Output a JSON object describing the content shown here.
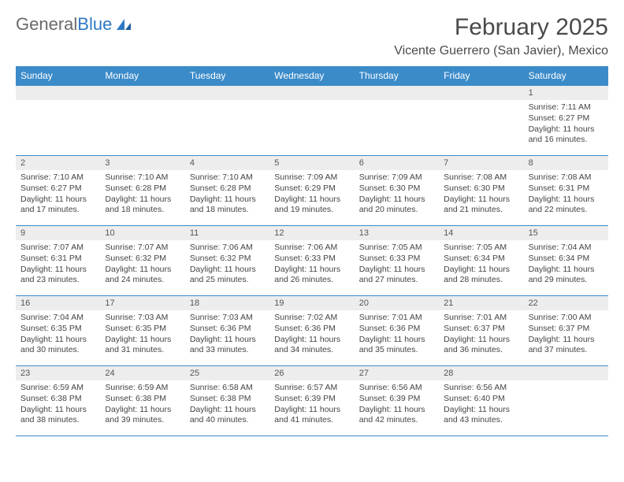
{
  "logo": {
    "text1": "General",
    "text2": "Blue"
  },
  "title": "February 2025",
  "location": "Vicente Guerrero (San Javier), Mexico",
  "colors": {
    "header_bg": "#3b8bc9",
    "header_text": "#ffffff",
    "daynum_bg": "#ededed",
    "border": "#3b8bc9",
    "body_text": "#444444"
  },
  "typography": {
    "title_fontsize": 30,
    "location_fontsize": 16,
    "header_fontsize": 12,
    "cell_fontsize": 10.5
  },
  "day_names": [
    "Sunday",
    "Monday",
    "Tuesday",
    "Wednesday",
    "Thursday",
    "Friday",
    "Saturday"
  ],
  "weeks": [
    [
      null,
      null,
      null,
      null,
      null,
      null,
      {
        "n": "1",
        "sunrise": "7:11 AM",
        "sunset": "6:27 PM",
        "daylight": "11 hours and 16 minutes."
      }
    ],
    [
      {
        "n": "2",
        "sunrise": "7:10 AM",
        "sunset": "6:27 PM",
        "daylight": "11 hours and 17 minutes."
      },
      {
        "n": "3",
        "sunrise": "7:10 AM",
        "sunset": "6:28 PM",
        "daylight": "11 hours and 18 minutes."
      },
      {
        "n": "4",
        "sunrise": "7:10 AM",
        "sunset": "6:28 PM",
        "daylight": "11 hours and 18 minutes."
      },
      {
        "n": "5",
        "sunrise": "7:09 AM",
        "sunset": "6:29 PM",
        "daylight": "11 hours and 19 minutes."
      },
      {
        "n": "6",
        "sunrise": "7:09 AM",
        "sunset": "6:30 PM",
        "daylight": "11 hours and 20 minutes."
      },
      {
        "n": "7",
        "sunrise": "7:08 AM",
        "sunset": "6:30 PM",
        "daylight": "11 hours and 21 minutes."
      },
      {
        "n": "8",
        "sunrise": "7:08 AM",
        "sunset": "6:31 PM",
        "daylight": "11 hours and 22 minutes."
      }
    ],
    [
      {
        "n": "9",
        "sunrise": "7:07 AM",
        "sunset": "6:31 PM",
        "daylight": "11 hours and 23 minutes."
      },
      {
        "n": "10",
        "sunrise": "7:07 AM",
        "sunset": "6:32 PM",
        "daylight": "11 hours and 24 minutes."
      },
      {
        "n": "11",
        "sunrise": "7:06 AM",
        "sunset": "6:32 PM",
        "daylight": "11 hours and 25 minutes."
      },
      {
        "n": "12",
        "sunrise": "7:06 AM",
        "sunset": "6:33 PM",
        "daylight": "11 hours and 26 minutes."
      },
      {
        "n": "13",
        "sunrise": "7:05 AM",
        "sunset": "6:33 PM",
        "daylight": "11 hours and 27 minutes."
      },
      {
        "n": "14",
        "sunrise": "7:05 AM",
        "sunset": "6:34 PM",
        "daylight": "11 hours and 28 minutes."
      },
      {
        "n": "15",
        "sunrise": "7:04 AM",
        "sunset": "6:34 PM",
        "daylight": "11 hours and 29 minutes."
      }
    ],
    [
      {
        "n": "16",
        "sunrise": "7:04 AM",
        "sunset": "6:35 PM",
        "daylight": "11 hours and 30 minutes."
      },
      {
        "n": "17",
        "sunrise": "7:03 AM",
        "sunset": "6:35 PM",
        "daylight": "11 hours and 31 minutes."
      },
      {
        "n": "18",
        "sunrise": "7:03 AM",
        "sunset": "6:36 PM",
        "daylight": "11 hours and 33 minutes."
      },
      {
        "n": "19",
        "sunrise": "7:02 AM",
        "sunset": "6:36 PM",
        "daylight": "11 hours and 34 minutes."
      },
      {
        "n": "20",
        "sunrise": "7:01 AM",
        "sunset": "6:36 PM",
        "daylight": "11 hours and 35 minutes."
      },
      {
        "n": "21",
        "sunrise": "7:01 AM",
        "sunset": "6:37 PM",
        "daylight": "11 hours and 36 minutes."
      },
      {
        "n": "22",
        "sunrise": "7:00 AM",
        "sunset": "6:37 PM",
        "daylight": "11 hours and 37 minutes."
      }
    ],
    [
      {
        "n": "23",
        "sunrise": "6:59 AM",
        "sunset": "6:38 PM",
        "daylight": "11 hours and 38 minutes."
      },
      {
        "n": "24",
        "sunrise": "6:59 AM",
        "sunset": "6:38 PM",
        "daylight": "11 hours and 39 minutes."
      },
      {
        "n": "25",
        "sunrise": "6:58 AM",
        "sunset": "6:38 PM",
        "daylight": "11 hours and 40 minutes."
      },
      {
        "n": "26",
        "sunrise": "6:57 AM",
        "sunset": "6:39 PM",
        "daylight": "11 hours and 41 minutes."
      },
      {
        "n": "27",
        "sunrise": "6:56 AM",
        "sunset": "6:39 PM",
        "daylight": "11 hours and 42 minutes."
      },
      {
        "n": "28",
        "sunrise": "6:56 AM",
        "sunset": "6:40 PM",
        "daylight": "11 hours and 43 minutes."
      },
      null
    ]
  ],
  "labels": {
    "sunrise": "Sunrise: ",
    "sunset": "Sunset: ",
    "daylight": "Daylight: "
  }
}
